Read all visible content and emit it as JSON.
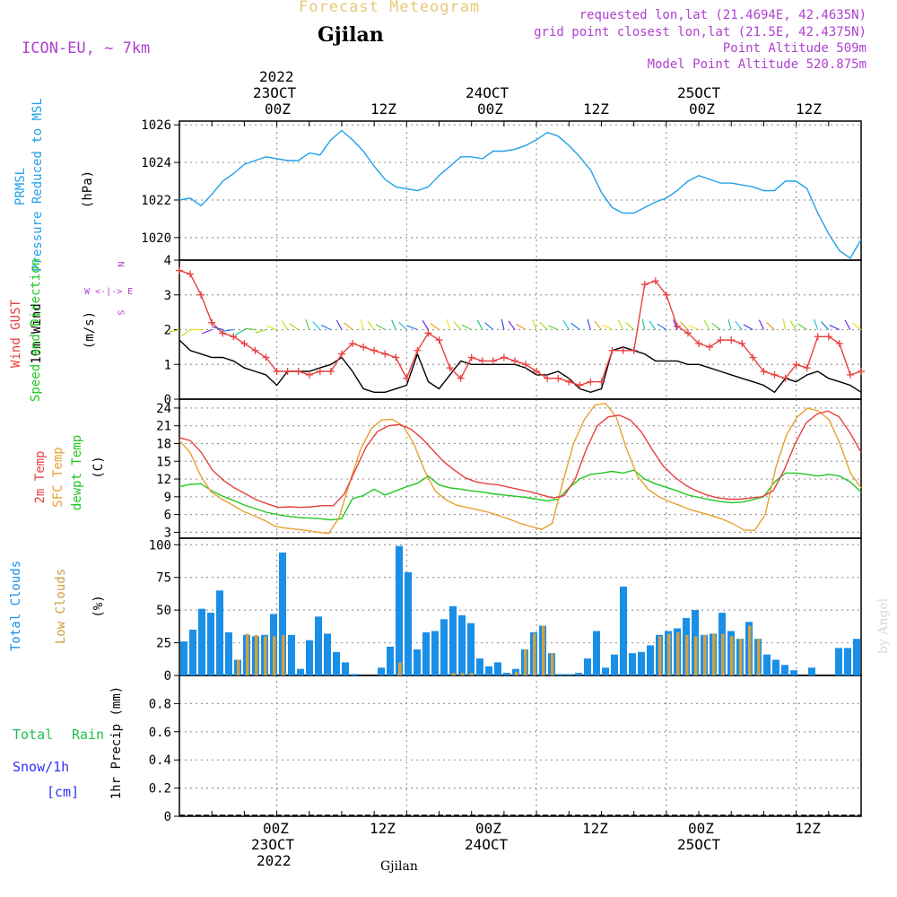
{
  "header": {
    "title": "Forecast Meteogram",
    "location": "Gjilan",
    "model": "ICON-EU, ~ 7km",
    "requested": "requested lon,lat (21.4694E, 42.4635N)",
    "grid": "grid point closest lon,lat (21.5E, 42.4375N)",
    "point_alt": "Point Altitude 509m",
    "model_alt": "Model Point Altitude 520.875m",
    "watermark": "by Angel",
    "footer_location": "Gjilan"
  },
  "colors": {
    "pressure": "#1ea0e8",
    "gust": "#e84040",
    "wind": "#000000",
    "temp": "#e84040",
    "sfc": "#e8a030",
    "dewpt": "#20c820",
    "total_cloud": "#1a8fe8",
    "low_cloud": "#d0a040",
    "rain": "#20c050",
    "snow": "#3030ff",
    "purple": "#b040d0"
  },
  "panel_labels": {
    "pressure": [
      "PRMSL",
      "Pressure Reduced to MSL",
      "(hPa)"
    ],
    "wind": [
      "Wind GUST",
      "10m Wind",
      "Speed and Direction",
      "(m/s)"
    ],
    "compass": [
      "N",
      "W <-|-> E",
      "S"
    ],
    "temp": [
      "2m Temp",
      "SFC Temp",
      "dewpt Temp",
      "(C)"
    ],
    "cloud": [
      "Total Clouds",
      "Low Clouds",
      "(%)"
    ],
    "precip": [
      "Total",
      "Rain",
      "Snow/1h",
      "[cm]",
      "1hr Precip (mm)"
    ]
  },
  "time_axis": {
    "top_year": "2022",
    "top": [
      {
        "hour": "00Z",
        "date": "23OCT"
      },
      {
        "hour": "12Z",
        "date": ""
      },
      {
        "hour": "00Z",
        "date": "24OCT"
      },
      {
        "hour": "12Z",
        "date": ""
      },
      {
        "hour": "00Z",
        "date": "25OCT"
      },
      {
        "hour": "12Z",
        "date": ""
      }
    ],
    "bottom_year": "2022"
  },
  "chart_data": [
    {
      "type": "line",
      "title": "PRMSL Pressure Reduced to MSL",
      "ylabel": "hPa",
      "ylim": [
        1018.8,
        1026.2
      ],
      "yticks": [
        1020,
        1022,
        1024,
        1026
      ],
      "x_hours": "hours relative to 23OCT 00Z, -9 to 54",
      "series": [
        {
          "name": "PRMSL",
          "x": [
            -9,
            -8,
            -7,
            -6,
            -5,
            -4,
            -3,
            -2,
            -1,
            0,
            1,
            2,
            3,
            4,
            5,
            6,
            7,
            8,
            9,
            10,
            11,
            12,
            13,
            14,
            15,
            16,
            17,
            18,
            19,
            20,
            21,
            22,
            23,
            24,
            25,
            26,
            27,
            28,
            29,
            30,
            31,
            32,
            33,
            34,
            35,
            36,
            37,
            38,
            39,
            40,
            41,
            42,
            43,
            44,
            45,
            46,
            47,
            48,
            49,
            50,
            51,
            52,
            53,
            54
          ],
          "values": [
            1022.0,
            1022.1,
            1021.7,
            1022.3,
            1023.0,
            1023.4,
            1023.9,
            1024.1,
            1024.3,
            1024.2,
            1024.1,
            1024.1,
            1024.5,
            1024.4,
            1025.2,
            1025.7,
            1025.2,
            1024.6,
            1023.8,
            1023.1,
            1022.7,
            1022.6,
            1022.5,
            1022.7,
            1023.3,
            1023.8,
            1024.3,
            1024.3,
            1024.2,
            1024.6,
            1024.6,
            1024.7,
            1024.9,
            1025.2,
            1025.6,
            1025.4,
            1024.9,
            1024.3,
            1023.6,
            1022.4,
            1021.6,
            1021.3,
            1021.3,
            1021.6,
            1021.9,
            1022.1,
            1022.5,
            1023.0,
            1023.3,
            1023.1,
            1022.9,
            1022.9,
            1022.8,
            1022.7,
            1022.5,
            1022.5,
            1023.0,
            1023.0,
            1022.6,
            1021.3,
            1020.2,
            1019.3,
            1018.9,
            1019.9
          ]
        }
      ]
    },
    {
      "type": "line",
      "title": "Wind GUST / 10m Wind Speed and Direction",
      "ylabel": "m/s",
      "ylim": [
        0,
        4
      ],
      "yticks": [
        0,
        1,
        2,
        3,
        4
      ],
      "series": [
        {
          "name": "Wind GUST",
          "values": [
            3.7,
            3.6,
            3.0,
            2.2,
            1.9,
            1.8,
            1.6,
            1.4,
            1.2,
            0.8,
            0.8,
            0.8,
            0.7,
            0.8,
            0.8,
            1.3,
            1.6,
            1.5,
            1.4,
            1.3,
            1.2,
            0.6,
            1.4,
            1.9,
            1.7,
            0.9,
            0.6,
            1.2,
            1.1,
            1.1,
            1.2,
            1.1,
            1.0,
            0.8,
            0.6,
            0.6,
            0.5,
            0.4,
            0.5,
            0.5,
            1.4,
            1.4,
            1.4,
            3.3,
            3.4,
            3.0,
            2.1,
            1.9,
            1.6,
            1.5,
            1.7,
            1.7,
            1.6,
            1.2,
            0.8,
            0.7,
            0.6,
            1.0,
            0.9,
            1.8,
            1.8,
            1.6,
            0.7,
            0.8
          ]
        },
        {
          "name": "10m Wind",
          "values": [
            1.7,
            1.4,
            1.3,
            1.2,
            1.2,
            1.1,
            0.9,
            0.8,
            0.7,
            0.4,
            0.8,
            0.8,
            0.8,
            0.9,
            1.0,
            1.2,
            0.8,
            0.3,
            0.2,
            0.2,
            0.3,
            0.4,
            1.3,
            0.5,
            0.3,
            0.7,
            1.1,
            1.0,
            1.0,
            1.0,
            1.0,
            1.0,
            0.9,
            0.7,
            0.7,
            0.8,
            0.6,
            0.3,
            0.2,
            0.3,
            1.4,
            1.5,
            1.4,
            1.3,
            1.1,
            1.1,
            1.1,
            1.0,
            1.0,
            0.9,
            0.8,
            0.7,
            0.6,
            0.5,
            0.4,
            0.2,
            0.6,
            0.5,
            0.7,
            0.8,
            0.6,
            0.5,
            0.4,
            0.2
          ]
        }
      ]
    },
    {
      "type": "line",
      "title": "2m Temp / SFC Temp / dewpt Temp",
      "ylabel": "C",
      "ylim": [
        2,
        25.5
      ],
      "yticks": [
        3,
        6,
        9,
        12,
        15,
        18,
        21,
        24
      ],
      "series": [
        {
          "name": "2m Temp",
          "values": [
            19.0,
            18.5,
            16.5,
            13.5,
            11.8,
            10.5,
            9.5,
            8.5,
            7.8,
            7.2,
            7.3,
            7.2,
            7.3,
            7.5,
            7.5,
            9.5,
            13.5,
            17.5,
            20.0,
            21.0,
            21.2,
            20.5,
            19.0,
            17.0,
            15.0,
            13.5,
            12.2,
            11.5,
            11.2,
            11.0,
            10.6,
            10.2,
            9.8,
            9.3,
            8.8,
            9.2,
            12.0,
            17.0,
            21.0,
            22.5,
            22.8,
            22.0,
            20.0,
            17.0,
            14.2,
            12.4,
            11.0,
            10.0,
            9.3,
            8.8,
            8.6,
            8.6,
            8.8,
            9.0,
            10.0,
            13.5,
            18.0,
            21.5,
            23.0,
            23.5,
            22.5,
            19.8,
            16.5
          ]
        },
        {
          "name": "SFC Temp",
          "values": [
            18.5,
            16.5,
            12.5,
            9.8,
            8.6,
            7.6,
            6.5,
            5.8,
            5.0,
            4.0,
            3.7,
            3.5,
            3.3,
            3.0,
            2.8,
            5.5,
            11.5,
            17.0,
            20.5,
            22.0,
            22.1,
            21.0,
            18.0,
            13.5,
            10.0,
            8.5,
            7.6,
            7.2,
            6.8,
            6.4,
            5.8,
            5.2,
            4.5,
            4.0,
            3.5,
            4.5,
            11.5,
            18.0,
            22.0,
            24.5,
            24.8,
            22.5,
            17.0,
            12.5,
            10.3,
            9.0,
            8.2,
            7.5,
            6.8,
            6.3,
            5.8,
            5.2,
            4.4,
            3.4,
            3.3,
            6.0,
            14.0,
            19.5,
            22.5,
            24.0,
            23.5,
            22.0,
            18.0,
            13.0,
            10.5
          ]
        },
        {
          "name": "dewpt Temp",
          "values": [
            10.7,
            11.1,
            11.2,
            10.0,
            9.1,
            8.4,
            7.6,
            7.0,
            6.4,
            6.0,
            5.7,
            5.5,
            5.4,
            5.3,
            5.1,
            5.3,
            8.7,
            9.2,
            10.3,
            9.3,
            10.0,
            10.7,
            11.3,
            12.5,
            11.0,
            10.5,
            10.3,
            10.0,
            9.8,
            9.5,
            9.3,
            9.1,
            8.9,
            8.6,
            8.3,
            8.6,
            10.5,
            12.0,
            12.8,
            13.0,
            13.3,
            13.0,
            13.5,
            12.0,
            11.2,
            10.6,
            10.0,
            9.3,
            8.9,
            8.5,
            8.2,
            8.0,
            8.1,
            8.5,
            9.0,
            11.5,
            13.0,
            13.0,
            12.8,
            12.5,
            12.8,
            12.5,
            11.5,
            9.8
          ]
        }
      ]
    },
    {
      "type": "bar",
      "title": "Total Clouds / Low Clouds",
      "ylabel": "%",
      "ylim": [
        0,
        105
      ],
      "yticks": [
        0,
        25,
        50,
        75,
        100
      ],
      "series": [
        {
          "name": "Total Clouds",
          "values": [
            26,
            35,
            51,
            48,
            65,
            33,
            12,
            31,
            30,
            31,
            47,
            94,
            31,
            5,
            27,
            45,
            32,
            18,
            10,
            1,
            0,
            0,
            6,
            22,
            99,
            79,
            20,
            33,
            34,
            43,
            53,
            46,
            40,
            13,
            7,
            10,
            2,
            5,
            20,
            33,
            38,
            17,
            1,
            1,
            2,
            13,
            34,
            6,
            16,
            68,
            17,
            18,
            23,
            31,
            34,
            36,
            44,
            50,
            31,
            32,
            48,
            34,
            28,
            41,
            28,
            16,
            12,
            8,
            4,
            0,
            6,
            0,
            0,
            21,
            21,
            28
          ]
        },
        {
          "name": "Low Clouds",
          "values": [
            0,
            0,
            0,
            0,
            0,
            0,
            12,
            32,
            31,
            30,
            30,
            31,
            0,
            0,
            0,
            0,
            0,
            0,
            0,
            0,
            0,
            0,
            0,
            0,
            10,
            0,
            0,
            0,
            0,
            0,
            2,
            2,
            2,
            0,
            0,
            0,
            0,
            3,
            20,
            32,
            38,
            17,
            0,
            0,
            0,
            0,
            0,
            0,
            0,
            0,
            0,
            0,
            0,
            30,
            32,
            33,
            31,
            30,
            31,
            32,
            32,
            30,
            28,
            38,
            28,
            0,
            0,
            0,
            0,
            0,
            0,
            0,
            0,
            0,
            0,
            0
          ]
        }
      ]
    },
    {
      "type": "line",
      "title": "1hr Precip",
      "ylabel": "mm",
      "ylim": [
        0,
        1.0
      ],
      "yticks": [
        0,
        0.2,
        0.4,
        0.6,
        0.8
      ],
      "series": [
        {
          "name": "Total Rain",
          "values": []
        },
        {
          "name": "Snow/1h",
          "values": []
        }
      ]
    }
  ]
}
